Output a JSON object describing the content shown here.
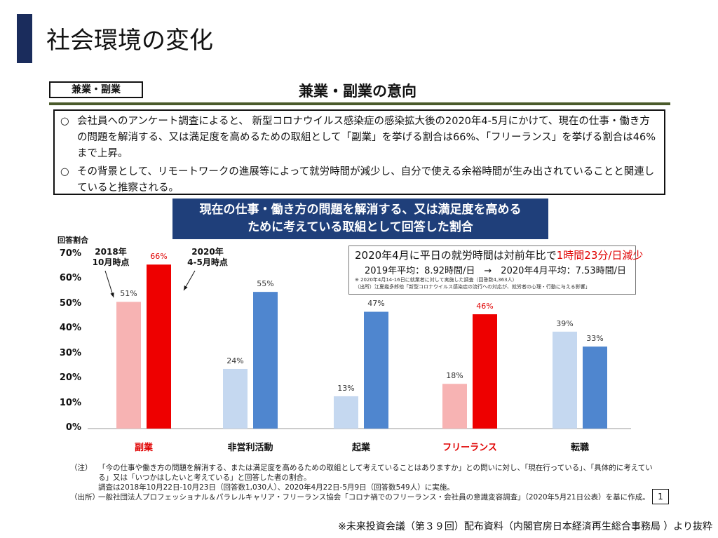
{
  "page": {
    "title": "社会環境の変化",
    "section_tag": "兼業・副業",
    "section_title": "兼業・副業の意向"
  },
  "summary": {
    "bullet_mark": "○",
    "bullets": [
      "会社員へのアンケート調査によると、 新型コロナウイルス感染症の感染拡大後の2020年4-5月にかけて、現在の仕事・働き方の問題を解消する、又は満足度を高めるための取組として「副業」を挙げる割合は66%、「フリーランス」を挙げる割合は46%まで上昇。",
      "その背景として、リモートワークの進展等によって就労時間が減少し、自分で使える余裕時間が生み出されていることと関連していると推察される。"
    ]
  },
  "banner": {
    "line1": "現在の仕事・働き方の問題を解消する、又は満足度を高める",
    "line2": "ために考えている取組として回答した割合"
  },
  "annotations": {
    "series_2018": "2018年\n10月時点",
    "series_2020": "2020年\n4-5月時点"
  },
  "info_box": {
    "line1_prefix": "2020年4月に平日の就労時間は対前年比で",
    "line1_highlight": "1時間23分/日減少",
    "line2": "2019年平均：8.92時間/日　→　2020年4月平均：7.53時間/日",
    "note1": "※ 2020年4月14-16日に就業者に対して実施した調査（回答数4,363人）",
    "note2": "（出所）江夏幾多郎他「新型コロナウイルス感染症の流行への対応が、就労者の心理・行動に与える影響」"
  },
  "chart_data": {
    "type": "bar",
    "ylabel": "回答割合",
    "ylim": [
      0,
      70
    ],
    "yticks": [
      "0%",
      "10%",
      "20%",
      "30%",
      "40%",
      "50%",
      "60%",
      "70%"
    ],
    "categories": [
      "副業",
      "非営利活動",
      "起業",
      "フリーランス",
      "転職"
    ],
    "category_colors": [
      "#e00000",
      "#111111",
      "#111111",
      "#e00000",
      "#111111"
    ],
    "series": [
      {
        "name": "2018年10月時点",
        "values": [
          51,
          24,
          13,
          18,
          39
        ],
        "labels": [
          "51%",
          "24%",
          "13%",
          "18%",
          "39%"
        ],
        "colors": [
          "#f7b3b3",
          "#c5d8f0",
          "#c5d8f0",
          "#f7b3b3",
          "#c5d8f0"
        ]
      },
      {
        "name": "2020年4-5月時点",
        "values": [
          66,
          55,
          47,
          46,
          33
        ],
        "labels": [
          "66%",
          "55%",
          "47%",
          "46%",
          "33%"
        ],
        "colors": [
          "#ee0000",
          "#4f86cf",
          "#4f86cf",
          "#ee0000",
          "#4f86cf"
        ]
      }
    ]
  },
  "notes": [
    {
      "key": "（注）",
      "text": "「今の仕事や働き方の問題を解消する、または満足度を高めるための取組として考えていることはありますか」との問いに対し、「現在行っている」、「具体的に考えている」又は「いつかはしたいと考えている」と回答した者の割合。"
    },
    {
      "key": "",
      "text": "調査は2018年10月22日-10月23日（回答数1,030人）、2020年4月22日-5月9日（回答数549人）に実施。"
    },
    {
      "key": "（出所）",
      "text": "一般社団法人プロフェッショナル＆パラレルキャリア・フリーランス協会「コロナ禍でのフリーランス・会社員の意識変容調査」（2020年5月21日公表）を基に作成。"
    }
  ],
  "page_number": "1",
  "footer_source": "※未来投資会議（第３９回）配布資料（内閣官房日本経済再生総合事務局 ）より抜粋"
}
